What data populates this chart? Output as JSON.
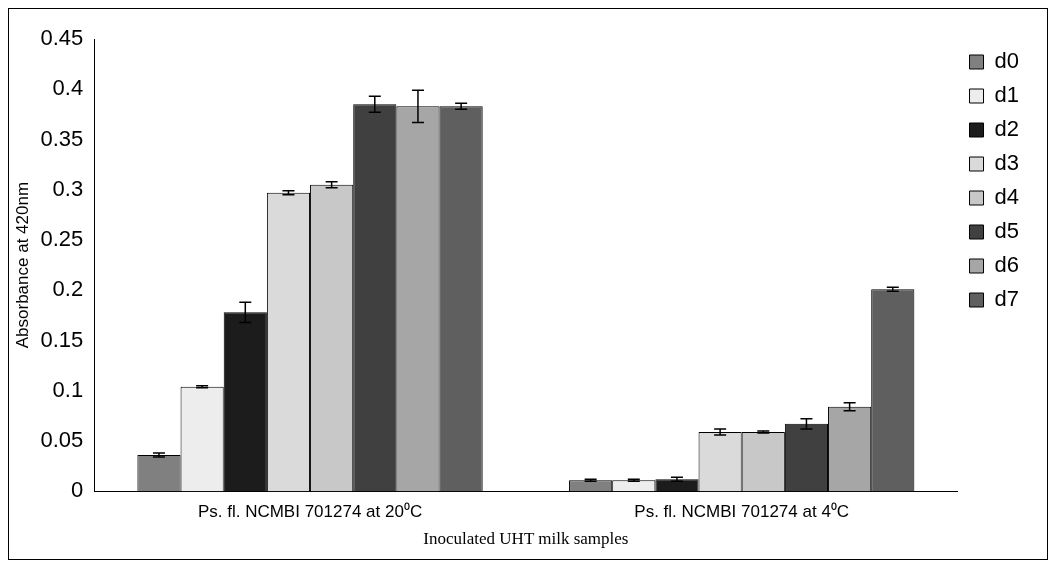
{
  "chart_data": {
    "type": "bar",
    "xlabel": "Inoculated UHT milk samples",
    "ylabel": "Absorbance at 420nm",
    "categories": [
      "Ps. fl. NCMBI 701274 at 20⁰C",
      "Ps. fl. NCMBI 701274 at 4⁰C"
    ],
    "series": [
      {
        "name": "d0",
        "color": "#808080",
        "values": [
          0.036,
          0.011
        ],
        "errors": [
          0.002,
          0.001
        ]
      },
      {
        "name": "d1",
        "color": "#ededed",
        "values": [
          0.104,
          0.011
        ],
        "errors": [
          0.001,
          0.001
        ]
      },
      {
        "name": "d2",
        "color": "#1c1c1c",
        "values": [
          0.178,
          0.012
        ],
        "errors": [
          0.01,
          0.002
        ]
      },
      {
        "name": "d3",
        "color": "#dadada",
        "values": [
          0.297,
          0.059
        ],
        "errors": [
          0.002,
          0.003
        ]
      },
      {
        "name": "d4",
        "color": "#c8c8c8",
        "values": [
          0.305,
          0.059
        ],
        "errors": [
          0.003,
          0.001
        ]
      },
      {
        "name": "d5",
        "color": "#404040",
        "values": [
          0.385,
          0.067
        ],
        "errors": [
          0.008,
          0.005
        ]
      },
      {
        "name": "d6",
        "color": "#a6a6a6",
        "values": [
          0.383,
          0.084
        ],
        "errors": [
          0.016,
          0.004
        ]
      },
      {
        "name": "d7",
        "color": "#5f5f5f",
        "values": [
          0.383,
          0.201
        ],
        "errors": [
          0.003,
          0.002
        ]
      }
    ],
    "ylim": [
      0,
      0.45
    ],
    "yticks": [
      0,
      0.05,
      0.1,
      0.15,
      0.2,
      0.25,
      0.3,
      0.35,
      0.4,
      0.45
    ],
    "grid": false,
    "legend": "right"
  }
}
